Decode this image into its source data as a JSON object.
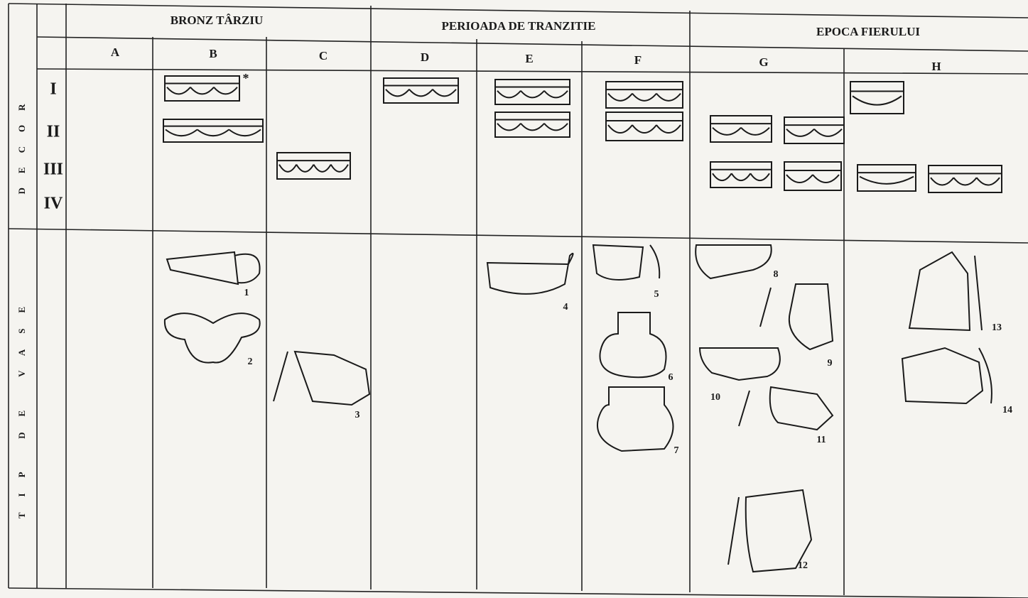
{
  "header": {
    "periods": [
      "BRONZ TÂRZIU",
      "PERIOADA DE TRANZITIE",
      "EPOCA FIERULUI"
    ],
    "columns": [
      "A",
      "B",
      "C",
      "D",
      "E",
      "F",
      "G",
      "H"
    ]
  },
  "rows": {
    "side_labels": [
      "DECOR",
      "TIP DE VASE"
    ],
    "decor_levels": [
      "I",
      "II",
      "III",
      "IV"
    ]
  },
  "figures": {
    "asterisk": "*",
    "numbers": [
      1,
      2,
      3,
      4,
      5,
      6,
      7,
      8,
      9,
      10,
      11,
      12,
      13,
      14
    ]
  }
}
